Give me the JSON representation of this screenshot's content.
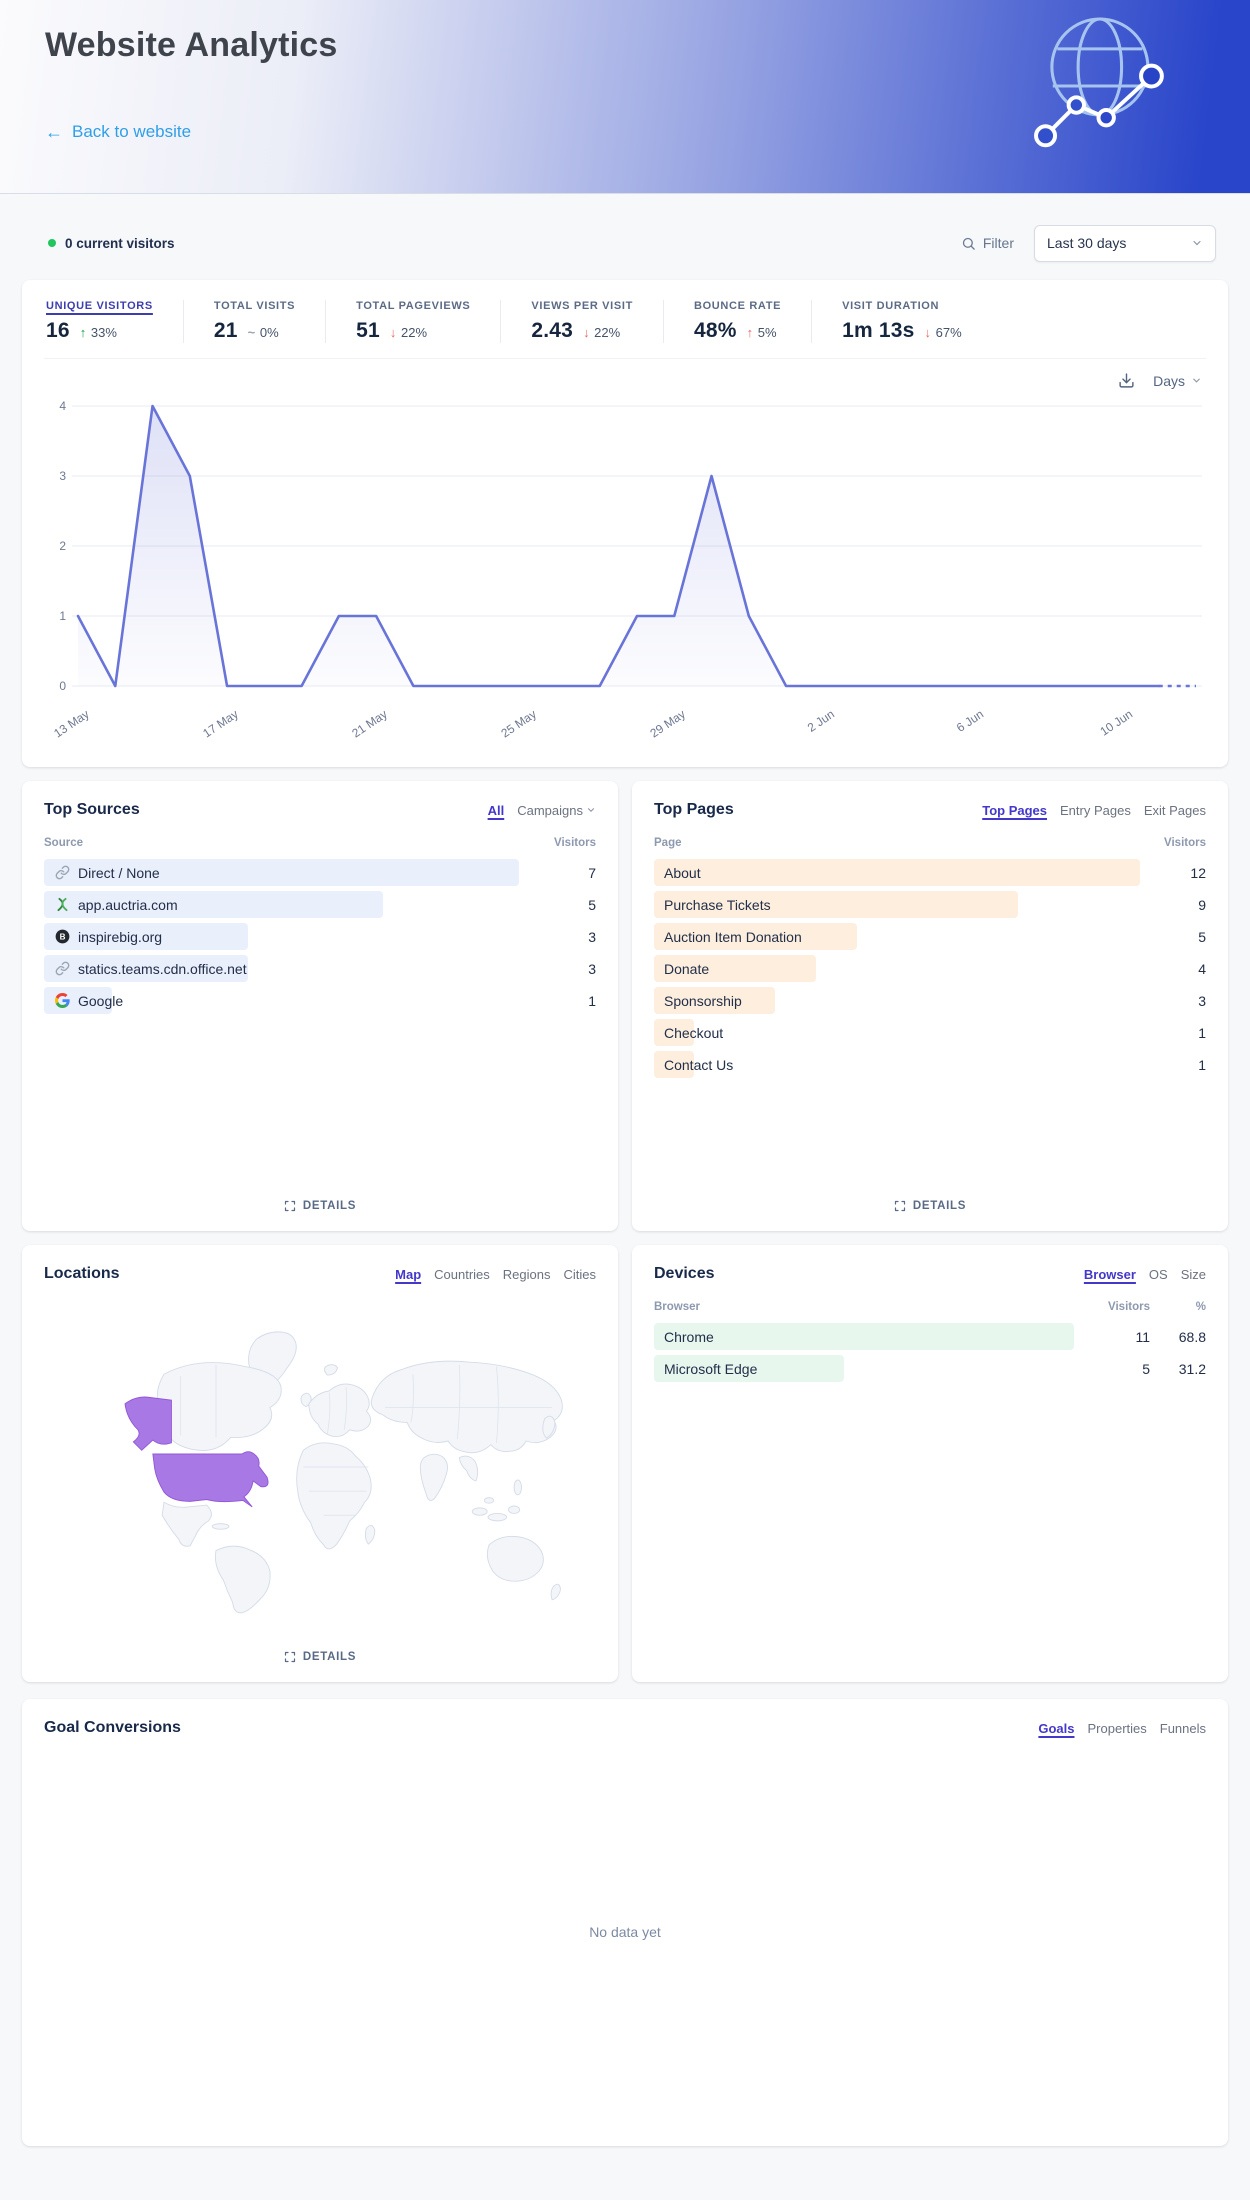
{
  "header": {
    "title": "Website Analytics",
    "back_label": "Back to website"
  },
  "toolbar": {
    "current_visitors": "0 current visitors",
    "filter_label": "Filter",
    "date_range": "Last 30 days"
  },
  "colors": {
    "accent": "#4338ca",
    "chart_line": "#6974d8",
    "good": "#17a34a",
    "bad": "#e8696b",
    "neutral": "#9aa3b2",
    "sources_bar": "#e9effb",
    "pages_bar": "#fdeede",
    "devices_bar": "#e8f7ee",
    "map_highlight": "#a878e4",
    "map_highlight_border": "#9257d8",
    "live_dot": "#22c55e"
  },
  "metrics": [
    {
      "label": "UNIQUE VISITORS",
      "value": "16",
      "delta": "33%",
      "arrow": "up",
      "tone": "good",
      "active": true
    },
    {
      "label": "TOTAL VISITS",
      "value": "21",
      "delta": "0%",
      "arrow": "flat",
      "tone": "neutral"
    },
    {
      "label": "TOTAL PAGEVIEWS",
      "value": "51",
      "delta": "22%",
      "arrow": "down",
      "tone": "bad"
    },
    {
      "label": "VIEWS PER VISIT",
      "value": "2.43",
      "delta": "22%",
      "arrow": "down",
      "tone": "bad"
    },
    {
      "label": "BOUNCE RATE",
      "value": "48%",
      "delta": "5%",
      "arrow": "up",
      "tone": "bad"
    },
    {
      "label": "VISIT DURATION",
      "value": "1m 13s",
      "delta": "67%",
      "arrow": "down",
      "tone": "bad"
    }
  ],
  "chart": {
    "interval_label": "Days"
  },
  "chart_data": {
    "type": "line",
    "title": "Unique visitors by day",
    "x": [
      "13 May",
      "14 May",
      "15 May",
      "16 May",
      "17 May",
      "18 May",
      "19 May",
      "20 May",
      "21 May",
      "22 May",
      "23 May",
      "24 May",
      "25 May",
      "26 May",
      "27 May",
      "28 May",
      "29 May",
      "30 May",
      "31 May",
      "1 Jun",
      "2 Jun",
      "3 Jun",
      "4 Jun",
      "5 Jun",
      "6 Jun",
      "7 Jun",
      "8 Jun",
      "9 Jun",
      "10 Jun",
      "11 Jun",
      "12 Jun"
    ],
    "values": [
      1,
      0,
      4,
      3,
      0,
      0,
      0,
      1,
      1,
      0,
      0,
      0,
      0,
      0,
      0,
      1,
      1,
      3,
      1,
      0,
      0,
      0,
      0,
      0,
      0,
      0,
      0,
      0,
      0,
      0,
      0
    ],
    "ylim": [
      0,
      4
    ],
    "yticks": [
      0,
      1,
      2,
      3,
      4
    ],
    "xtick_indices": [
      0,
      4,
      8,
      12,
      16,
      20,
      24,
      28
    ],
    "xtick_labels": [
      "13 May",
      "17 May",
      "21 May",
      "25 May",
      "29 May",
      "2 Jun",
      "6 Jun",
      "10 Jun"
    ],
    "dashed_tail_points": 2,
    "grid": true,
    "legend": false
  },
  "top_sources": {
    "title": "Top Sources",
    "tabs": [
      {
        "label": "All",
        "active": true
      },
      {
        "label": "Campaigns",
        "chevron": true
      }
    ],
    "columns": {
      "label": "Source",
      "visitors": "Visitors"
    },
    "rows": [
      {
        "label": "Direct / None",
        "visitors": 7,
        "icon": "link"
      },
      {
        "label": "app.auctria.com",
        "visitors": 5,
        "icon": "auctria"
      },
      {
        "label": "inspirebig.org",
        "visitors": 3,
        "icon": "inspirebig"
      },
      {
        "label": "statics.teams.cdn.office.net",
        "visitors": 3,
        "icon": "link"
      },
      {
        "label": "Google",
        "visitors": 1,
        "icon": "google"
      }
    ]
  },
  "top_pages": {
    "title": "Top Pages",
    "tabs": [
      {
        "label": "Top Pages",
        "active": true
      },
      {
        "label": "Entry Pages"
      },
      {
        "label": "Exit Pages"
      }
    ],
    "columns": {
      "label": "Page",
      "visitors": "Visitors"
    },
    "rows": [
      {
        "label": "About",
        "visitors": 12
      },
      {
        "label": "Purchase Tickets",
        "visitors": 9
      },
      {
        "label": "Auction Item Donation",
        "visitors": 5
      },
      {
        "label": "Donate",
        "visitors": 4
      },
      {
        "label": "Sponsorship",
        "visitors": 3
      },
      {
        "label": "Checkout",
        "visitors": 1
      },
      {
        "label": "Contact Us",
        "visitors": 1
      }
    ]
  },
  "locations": {
    "title": "Locations",
    "tabs": [
      {
        "label": "Map",
        "active": true
      },
      {
        "label": "Countries"
      },
      {
        "label": "Regions"
      },
      {
        "label": "Cities"
      }
    ],
    "highlighted_country": "United States"
  },
  "devices": {
    "title": "Devices",
    "tabs": [
      {
        "label": "Browser",
        "active": true
      },
      {
        "label": "OS"
      },
      {
        "label": "Size"
      }
    ],
    "columns": {
      "label": "Browser",
      "visitors": "Visitors",
      "percent": "%"
    },
    "rows": [
      {
        "label": "Chrome",
        "visitors": 11,
        "percent": "68.8"
      },
      {
        "label": "Microsoft Edge",
        "visitors": 5,
        "percent": "31.2"
      }
    ]
  },
  "goals": {
    "title": "Goal Conversions",
    "tabs": [
      {
        "label": "Goals",
        "active": true
      },
      {
        "label": "Properties"
      },
      {
        "label": "Funnels"
      }
    ],
    "empty_text": "No data yet"
  },
  "details_label": "DETAILS"
}
